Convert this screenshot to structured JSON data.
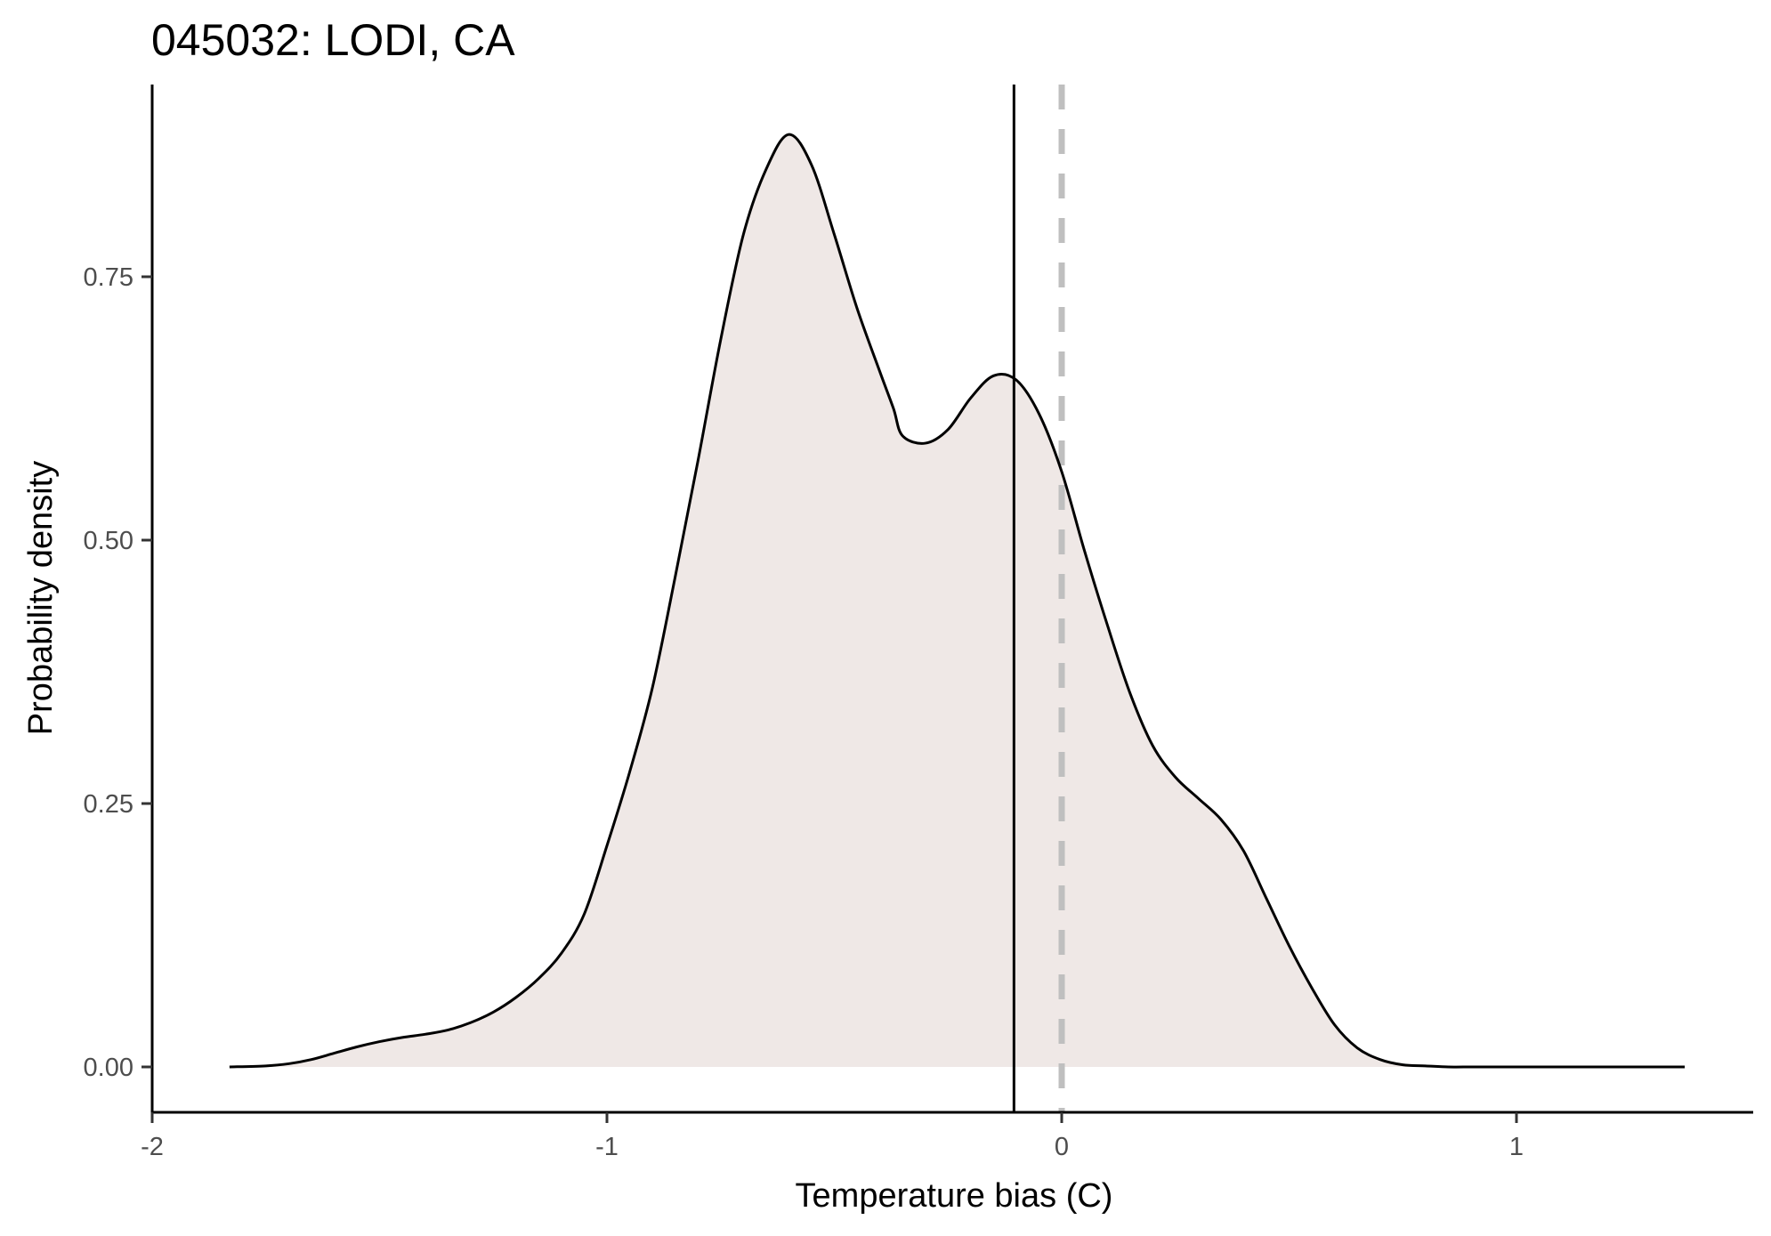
{
  "chart_data": {
    "type": "area",
    "title": "045032: LODI, CA",
    "xlabel": "Temperature bias (C)",
    "ylabel": "Probability density",
    "xlim": [
      -2,
      1.52
    ],
    "ylim": [
      -0.044,
      0.935
    ],
    "x_ticks": [
      -2,
      -1,
      0,
      1
    ],
    "x_tick_labels": [
      "-2",
      "-1",
      "0",
      "1"
    ],
    "y_ticks": [
      0,
      0.25,
      0.5,
      0.75
    ],
    "y_tick_labels": [
      "0.00",
      "0.25",
      "0.50",
      "0.75"
    ],
    "grid": false,
    "fill_color": "#efe8e6",
    "line_color": "#000000",
    "reference_lines": [
      {
        "x": -0.105,
        "style": "solid",
        "color": "#000000"
      },
      {
        "x": 0,
        "style": "dashed",
        "color": "#bfbfbf"
      }
    ],
    "series": [
      {
        "x": [
          -1.83,
          -1.75,
          -1.7,
          -1.65,
          -1.6,
          -1.55,
          -1.5,
          -1.45,
          -1.4,
          -1.35,
          -1.3,
          -1.25,
          -1.2,
          -1.15,
          -1.1,
          -1.05,
          -1.0,
          -0.95,
          -0.9,
          -0.85,
          -0.8,
          -0.75,
          -0.7,
          -0.65,
          -0.6,
          -0.55,
          -0.5,
          -0.45,
          -0.4,
          -0.37,
          -0.35,
          -0.3,
          -0.25,
          -0.2,
          -0.15,
          -0.1,
          -0.05,
          0.0,
          0.05,
          0.1,
          0.15,
          0.2,
          0.25,
          0.3,
          0.35,
          0.4,
          0.45,
          0.5,
          0.55,
          0.6,
          0.65,
          0.7,
          0.75,
          0.8,
          0.85,
          0.9,
          0.95,
          1.0,
          1.05,
          1.1,
          1.15,
          1.2,
          1.25,
          1.3,
          1.37
        ],
        "y": [
          0.0,
          0.001,
          0.003,
          0.007,
          0.013,
          0.019,
          0.024,
          0.028,
          0.031,
          0.035,
          0.042,
          0.052,
          0.066,
          0.084,
          0.108,
          0.145,
          0.21,
          0.28,
          0.36,
          0.465,
          0.575,
          0.69,
          0.79,
          0.852,
          0.885,
          0.856,
          0.79,
          0.72,
          0.66,
          0.625,
          0.599,
          0.592,
          0.605,
          0.635,
          0.656,
          0.652,
          0.62,
          0.565,
          0.49,
          0.42,
          0.355,
          0.305,
          0.275,
          0.255,
          0.235,
          0.205,
          0.16,
          0.115,
          0.075,
          0.04,
          0.018,
          0.007,
          0.002,
          0.001,
          0.0,
          0.0,
          0.0,
          0.0,
          0.0,
          0.0,
          0.0,
          0.0,
          0.0,
          0.0,
          0.0
        ]
      }
    ]
  }
}
